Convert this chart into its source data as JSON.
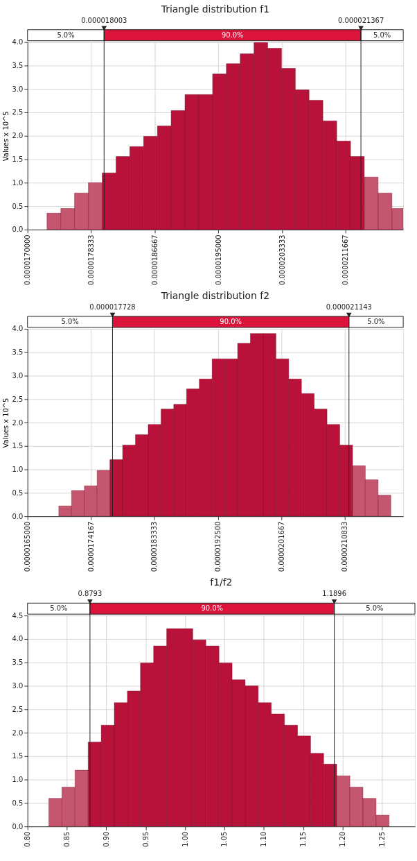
{
  "chart_data": [
    {
      "type": "histogram",
      "title": "Triangle distribution f1",
      "ylabel": "Values x 10^5",
      "bins": [
        1.7255e-05,
        1.7436e-05,
        1.7616e-05,
        1.7797e-05,
        1.7978e-05,
        1.8159e-05,
        1.8339e-05,
        1.852e-05,
        1.8701e-05,
        1.8881e-05,
        1.9062e-05,
        1.9243e-05,
        1.9424e-05,
        1.9604e-05,
        1.9785e-05,
        1.9966e-05,
        2.0146e-05,
        2.0327e-05,
        2.0508e-05,
        2.0688e-05,
        2.0869e-05,
        2.105e-05,
        2.1231e-05,
        2.1411e-05,
        2.1592e-05,
        2.1773e-05,
        2.1921e-05
      ],
      "values": [
        0.35,
        0.45,
        0.78,
        1.0,
        1.21,
        1.56,
        1.77,
        1.99,
        2.21,
        2.54,
        2.88,
        2.88,
        3.32,
        3.54,
        3.75,
        3.99,
        3.87,
        3.44,
        2.98,
        2.76,
        2.32,
        1.89,
        1.56,
        1.12,
        0.78,
        0.45
      ],
      "colors": [
        "#c4566f",
        "#c4566f",
        "#c4566f",
        "#c4566f",
        "#b8123a",
        "#b8123a",
        "#b8123a",
        "#b8123a",
        "#b8123a",
        "#b8123a",
        "#b8123a",
        "#b8123a",
        "#b8123a",
        "#b8123a",
        "#b8123a",
        "#b8123a",
        "#b8123a",
        "#b8123a",
        "#b8123a",
        "#b8123a",
        "#b8123a",
        "#b8123a",
        "#b8123a",
        "#c4566f",
        "#c4566f",
        "#c4566f"
      ],
      "xlim": [
        1.7e-05,
        2.1921e-05
      ],
      "ylim": [
        0,
        4
      ],
      "xticks": [
        {
          "value": 1.7e-05,
          "label": "0.0000170000"
        },
        {
          "value": 1.78333e-05,
          "label": "0.0000178333"
        },
        {
          "value": 1.86667e-05,
          "label": "0.0000186667"
        },
        {
          "value": 1.95e-05,
          "label": "0.0000195000"
        },
        {
          "value": 2.03333e-05,
          "label": "0.0000203333"
        },
        {
          "value": 2.11667e-05,
          "label": "0.0000211667"
        }
      ],
      "yticks": [
        {
          "value": 0,
          "label": "0.0"
        },
        {
          "value": 0.5,
          "label": "0.5"
        },
        {
          "value": 1,
          "label": "1.0"
        },
        {
          "value": 1.5,
          "label": "1.5"
        },
        {
          "value": 2,
          "label": "2.0"
        },
        {
          "value": 2.5,
          "label": "2.5"
        },
        {
          "value": 3,
          "label": "3.0"
        },
        {
          "value": 3.5,
          "label": "3.5"
        },
        {
          "value": 4,
          "label": "4.0"
        }
      ],
      "grid": true,
      "ref_lines": [
        {
          "axis": "x",
          "value": 1.8003e-05,
          "label": "0.000018003"
        },
        {
          "axis": "x",
          "value": 2.1367e-05,
          "label": "0.000021367"
        }
      ],
      "annotations": [
        "5.0%",
        "90.0%",
        "5.0%"
      ]
    },
    {
      "type": "histogram",
      "title": "Triangle distribution f2",
      "ylabel": "Values x 10^5",
      "bins": [
        1.6952e-05,
        1.7136e-05,
        1.7321e-05,
        1.7505e-05,
        1.769e-05,
        1.7874e-05,
        1.8059e-05,
        1.8243e-05,
        1.8428e-05,
        1.8612e-05,
        1.8797e-05,
        1.8981e-05,
        1.9166e-05,
        1.935e-05,
        1.9535e-05,
        1.9719e-05,
        1.9904e-05,
        2.0088e-05,
        2.0273e-05,
        2.0457e-05,
        2.0641e-05,
        2.0826e-05,
        2.101e-05,
        2.1195e-05,
        2.1379e-05,
        2.1564e-05,
        2.1748e-05
      ],
      "values": [
        0.22,
        0.55,
        0.65,
        0.98,
        1.21,
        1.52,
        1.74,
        1.96,
        2.29,
        2.39,
        2.72,
        2.93,
        3.36,
        3.36,
        3.69,
        3.9,
        3.9,
        3.36,
        2.93,
        2.62,
        2.29,
        1.96,
        1.52,
        1.08,
        0.78,
        0.45
      ],
      "colors": [
        "#c4566f",
        "#c4566f",
        "#c4566f",
        "#c4566f",
        "#b8123a",
        "#b8123a",
        "#b8123a",
        "#b8123a",
        "#b8123a",
        "#b8123a",
        "#b8123a",
        "#b8123a",
        "#b8123a",
        "#b8123a",
        "#b8123a",
        "#b8123a",
        "#b8123a",
        "#b8123a",
        "#b8123a",
        "#b8123a",
        "#b8123a",
        "#b8123a",
        "#b8123a",
        "#c4566f",
        "#c4566f",
        "#c4566f"
      ],
      "xlim": [
        1.65e-05,
        2.1927e-05
      ],
      "ylim": [
        0,
        4
      ],
      "xticks": [
        {
          "value": 1.65e-05,
          "label": "0.0000165000"
        },
        {
          "value": 1.74167e-05,
          "label": "0.0000174167"
        },
        {
          "value": 1.83333e-05,
          "label": "0.0000183333"
        },
        {
          "value": 1.925e-05,
          "label": "0.0000192500"
        },
        {
          "value": 2.01667e-05,
          "label": "0.0000201667"
        },
        {
          "value": 2.10833e-05,
          "label": "0.0000210833"
        }
      ],
      "yticks": [
        {
          "value": 0,
          "label": "0.0"
        },
        {
          "value": 0.5,
          "label": "0.5"
        },
        {
          "value": 1,
          "label": "1.0"
        },
        {
          "value": 1.5,
          "label": "1.5"
        },
        {
          "value": 2,
          "label": "2.0"
        },
        {
          "value": 2.5,
          "label": "2.5"
        },
        {
          "value": 3,
          "label": "3.0"
        },
        {
          "value": 3.5,
          "label": "3.5"
        },
        {
          "value": 4,
          "label": "4.0"
        }
      ],
      "grid": true,
      "ref_lines": [
        {
          "axis": "x",
          "value": 1.7728e-05,
          "label": "0.000017728"
        },
        {
          "axis": "x",
          "value": 2.1143e-05,
          "label": "0.000021143"
        }
      ],
      "annotations": [
        "5.0%",
        "90.0%",
        "5.0%"
      ]
    },
    {
      "type": "histogram",
      "title": "f1/f2",
      "bins": [
        0.8271,
        0.8437,
        0.8603,
        0.877,
        0.8936,
        0.9102,
        0.9268,
        0.9434,
        0.9601,
        0.9767,
        0.9933,
        1.0099,
        1.0265,
        1.0432,
        1.0598,
        1.0764,
        1.093,
        1.1096,
        1.1263,
        1.1429,
        1.1595,
        1.1761,
        1.1927,
        1.2094,
        1.226,
        1.2426,
        1.2592
      ],
      "values": [
        0.6,
        0.84,
        1.2,
        1.8,
        2.16,
        2.64,
        2.89,
        3.49,
        3.85,
        4.22,
        4.22,
        3.98,
        3.85,
        3.49,
        3.13,
        3.0,
        2.64,
        2.4,
        2.16,
        1.93,
        1.56,
        1.33,
        1.08,
        0.84,
        0.6,
        0.24
      ],
      "colors": [
        "#c4566f",
        "#c4566f",
        "#c4566f",
        "#b8123a",
        "#b8123a",
        "#b8123a",
        "#b8123a",
        "#b8123a",
        "#b8123a",
        "#b8123a",
        "#b8123a",
        "#b8123a",
        "#b8123a",
        "#b8123a",
        "#b8123a",
        "#b8123a",
        "#b8123a",
        "#b8123a",
        "#b8123a",
        "#b8123a",
        "#b8123a",
        "#b8123a",
        "#c4566f",
        "#c4566f",
        "#c4566f",
        "#c4566f"
      ],
      "xlim": [
        0.8,
        1.292
      ],
      "ylim": [
        0,
        4.5
      ],
      "xticks": [
        {
          "value": 0.8,
          "label": "0.80"
        },
        {
          "value": 0.85,
          "label": "0.85"
        },
        {
          "value": 0.9,
          "label": "0.90"
        },
        {
          "value": 0.95,
          "label": "0.95"
        },
        {
          "value": 1.0,
          "label": "1.00"
        },
        {
          "value": 1.05,
          "label": "1.05"
        },
        {
          "value": 1.1,
          "label": "1.10"
        },
        {
          "value": 1.15,
          "label": "1.15"
        },
        {
          "value": 1.2,
          "label": "1.20"
        },
        {
          "value": 1.25,
          "label": "1.25"
        }
      ],
      "yticks": [
        {
          "value": 0,
          "label": "0.0"
        },
        {
          "value": 0.5,
          "label": "0.5"
        },
        {
          "value": 1,
          "label": "1.0"
        },
        {
          "value": 1.5,
          "label": "1.5"
        },
        {
          "value": 2,
          "label": "2.0"
        },
        {
          "value": 2.5,
          "label": "2.5"
        },
        {
          "value": 3,
          "label": "3.0"
        },
        {
          "value": 3.5,
          "label": "3.5"
        },
        {
          "value": 4,
          "label": "4.0"
        },
        {
          "value": 4.5,
          "label": "4.5"
        }
      ],
      "grid": true,
      "ref_lines": [
        {
          "axis": "x",
          "value": 0.8793,
          "label": "0.8793"
        },
        {
          "axis": "x",
          "value": 1.1896,
          "label": "1.1896"
        }
      ],
      "annotations": [
        "5.0%",
        "90.0%",
        "5.0%"
      ]
    }
  ]
}
